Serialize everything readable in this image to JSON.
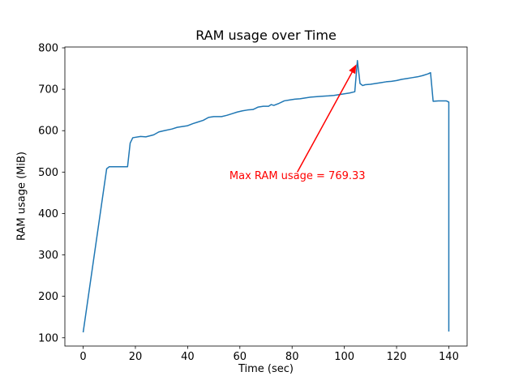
{
  "chart_data": {
    "type": "line",
    "title": "RAM usage over Time",
    "xlabel": "Time (sec)",
    "ylabel": "RAM usage (MiB)",
    "xlim": [
      -7,
      147
    ],
    "ylim": [
      80,
      802
    ],
    "xticks": [
      0,
      20,
      40,
      60,
      80,
      100,
      120,
      140
    ],
    "yticks": [
      100,
      200,
      300,
      400,
      500,
      600,
      700,
      800
    ],
    "line_color": "#1f77b4",
    "axis_color": "#000000",
    "series": [
      {
        "name": "RAM usage",
        "points": [
          [
            0,
            113
          ],
          [
            9,
            508
          ],
          [
            10,
            513
          ],
          [
            17,
            513
          ],
          [
            18,
            570
          ],
          [
            19,
            583
          ],
          [
            22,
            586
          ],
          [
            24,
            585
          ],
          [
            27,
            590
          ],
          [
            29,
            597
          ],
          [
            31,
            600
          ],
          [
            34,
            604
          ],
          [
            36,
            608
          ],
          [
            38,
            610
          ],
          [
            40,
            612
          ],
          [
            42,
            617
          ],
          [
            44,
            621
          ],
          [
            46,
            625
          ],
          [
            48,
            632
          ],
          [
            50,
            634
          ],
          [
            53,
            634
          ],
          [
            55,
            637
          ],
          [
            57,
            641
          ],
          [
            59,
            645
          ],
          [
            61,
            648
          ],
          [
            63,
            650
          ],
          [
            65,
            651
          ],
          [
            66,
            654
          ],
          [
            67,
            657
          ],
          [
            69,
            659
          ],
          [
            71,
            659
          ],
          [
            72,
            663
          ],
          [
            73,
            661
          ],
          [
            75,
            666
          ],
          [
            77,
            672
          ],
          [
            79,
            674
          ],
          [
            81,
            676
          ],
          [
            83,
            677
          ],
          [
            85,
            679
          ],
          [
            87,
            681
          ],
          [
            89,
            682
          ],
          [
            91,
            683
          ],
          [
            94,
            684
          ],
          [
            96,
            685
          ],
          [
            98,
            687
          ],
          [
            100,
            689
          ],
          [
            102,
            691
          ],
          [
            104,
            694
          ],
          [
            105,
            769.33
          ],
          [
            106,
            714
          ],
          [
            107,
            709
          ],
          [
            108,
            711
          ],
          [
            110,
            712
          ],
          [
            112,
            714
          ],
          [
            114,
            716
          ],
          [
            116,
            718
          ],
          [
            118,
            719
          ],
          [
            120,
            721
          ],
          [
            122,
            724
          ],
          [
            124,
            726
          ],
          [
            126,
            728
          ],
          [
            128,
            730
          ],
          [
            130,
            733
          ],
          [
            132,
            737
          ],
          [
            133,
            740
          ],
          [
            134,
            671
          ],
          [
            136,
            672
          ],
          [
            139,
            672
          ],
          [
            140,
            669
          ],
          [
            140,
            115
          ]
        ]
      }
    ],
    "annotation": {
      "text": "Max RAM usage = 769.33",
      "color": "#ff0000",
      "text_pos": [
        56,
        492
      ],
      "arrow_from": [
        82,
        500
      ],
      "arrow_to": [
        104.6,
        760
      ]
    }
  }
}
